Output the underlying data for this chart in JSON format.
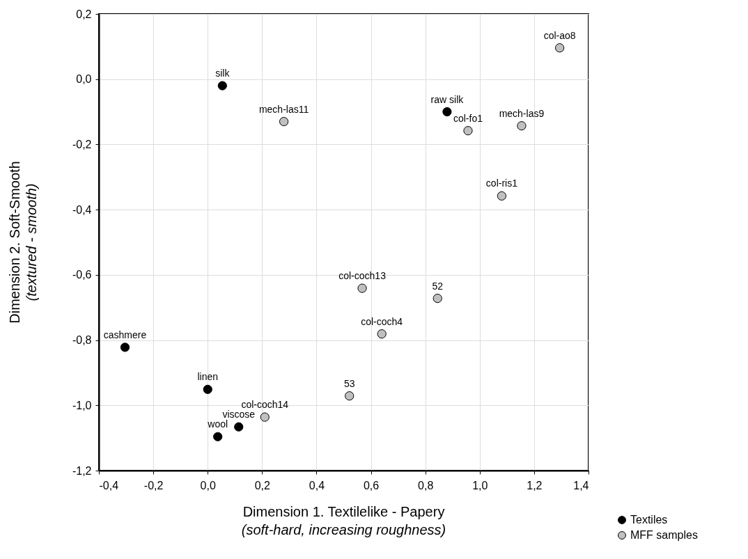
{
  "chart_data": {
    "type": "scatter",
    "xlabel": "Dimension 1. Textilelike - Papery\n(soft-hard, increasing roughness)",
    "ylabel": "Dimension 2. Soft-Smooth\n(textured - smooth)",
    "xlim": [
      -0.4,
      1.4
    ],
    "ylim": [
      -1.2,
      0.2
    ],
    "xticks": [
      {
        "value": -0.4,
        "label": "-0,4"
      },
      {
        "value": -0.2,
        "label": "-0,2"
      },
      {
        "value": 0,
        "label": "0,0"
      },
      {
        "value": 0.2,
        "label": "0,2"
      },
      {
        "value": 0.4,
        "label": "0,4"
      },
      {
        "value": 0.6,
        "label": "0,6"
      },
      {
        "value": 0.8,
        "label": "0,8"
      },
      {
        "value": 1.0,
        "label": "1,0"
      },
      {
        "value": 1.2,
        "label": "1,2"
      },
      {
        "value": 1.4,
        "label": "1,4"
      }
    ],
    "yticks": [
      {
        "value": -1.2,
        "label": "-1,2"
      },
      {
        "value": -1.0,
        "label": "-1,0"
      },
      {
        "value": -0.8,
        "label": "-0,8"
      },
      {
        "value": -0.6,
        "label": "-0,6"
      },
      {
        "value": -0.4,
        "label": "-0,4"
      },
      {
        "value": -0.2,
        "label": "-0,2"
      },
      {
        "value": 0,
        "label": "0,0"
      },
      {
        "value": 0.2,
        "label": "0,2"
      }
    ],
    "grid": true,
    "legend": "bottom right",
    "marker": "circle",
    "series": [
      {
        "name": "Textiles",
        "color": "#000000",
        "x": [
          0.054,
          0.88,
          -0.304,
          0.0,
          0.037,
          0.114
        ],
        "values": [
          -0.02,
          -0.1,
          -0.822,
          -0.951,
          -1.096,
          -1.066
        ]
      },
      {
        "name": "MFF samples",
        "color": "#c0c0c0",
        "x": [
          0.28,
          0.957,
          1.154,
          1.294,
          1.081,
          0.568,
          0.845,
          0.64,
          0.521,
          0.21
        ],
        "values": [
          -0.13,
          -0.158,
          -0.143,
          0.096,
          -0.358,
          -0.641,
          -0.672,
          -0.781,
          -0.971,
          -1.036
        ]
      }
    ],
    "annotations": [
      {
        "text": "silk",
        "x": 0.054,
        "y": -0.02
      },
      {
        "text": "raw silk",
        "x": 0.88,
        "y": -0.1
      },
      {
        "text": "cashmere",
        "x": -0.304,
        "y": -0.822
      },
      {
        "text": "linen",
        "x": 0.0,
        "y": -0.951
      },
      {
        "text": "wool",
        "x": 0.037,
        "y": -1.096
      },
      {
        "text": "viscose",
        "x": 0.114,
        "y": -1.066
      },
      {
        "text": "mech-las11",
        "x": 0.28,
        "y": -0.13
      },
      {
        "text": "col-fo1",
        "x": 0.957,
        "y": -0.158
      },
      {
        "text": "mech-las9",
        "x": 1.154,
        "y": -0.143
      },
      {
        "text": "col-ao8",
        "x": 1.294,
        "y": 0.096
      },
      {
        "text": "col-ris1",
        "x": 1.081,
        "y": -0.358
      },
      {
        "text": "col-coch13",
        "x": 0.568,
        "y": -0.641
      },
      {
        "text": "52",
        "x": 0.845,
        "y": -0.672
      },
      {
        "text": "col-coch4",
        "x": 0.64,
        "y": -0.781
      },
      {
        "text": "53",
        "x": 0.521,
        "y": -0.971
      },
      {
        "text": "col-coch14",
        "x": 0.21,
        "y": -1.036
      }
    ]
  }
}
